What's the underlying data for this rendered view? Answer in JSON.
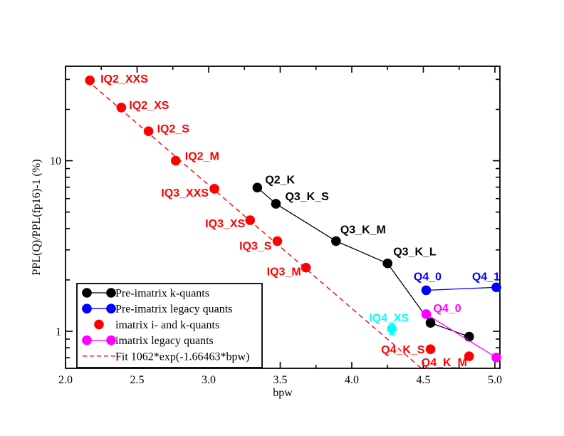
{
  "figure": {
    "background": "#ffffff",
    "title": ""
  },
  "chart_data": {
    "type": "scatter",
    "xlabel": "bpw",
    "ylabel": "PPL(Q)/PPL(fp16)-1 (%)",
    "x_axis": {
      "scale": "linear",
      "min": 2.0,
      "max": 5.035,
      "major_ticks": [
        2.0,
        2.5,
        3.0,
        3.5,
        4.0,
        4.5,
        5.0
      ],
      "tick_labels": [
        "2.0",
        "2.5",
        "3.0",
        "3.5",
        "4.0",
        "4.5",
        "5.0"
      ],
      "minor_ticks": [
        2.25,
        2.75,
        3.25,
        3.75,
        4.25,
        4.75
      ]
    },
    "y_axis": {
      "scale": "log",
      "min": 0.6065,
      "max": 35.8,
      "major_ticks": [
        1,
        10
      ],
      "tick_labels": [
        "1",
        "10"
      ],
      "minor_ticks": [
        0.7,
        0.8,
        0.9,
        2,
        3,
        4,
        5,
        6,
        7,
        8,
        9,
        20,
        30
      ]
    },
    "series": [
      {
        "name": "Pre-imatrix k-quants",
        "color": "#000000",
        "line": true,
        "in_legend": true,
        "points": [
          {
            "bpw": 3.34,
            "value": 6.96,
            "label": "Q2_K",
            "ldx": 11,
            "ldy": -6,
            "lanchor": "start"
          },
          {
            "bpw": 3.47,
            "value": 5.59,
            "label": "Q3_K_S",
            "ldx": 13,
            "ldy": -5,
            "lanchor": "start"
          },
          {
            "bpw": 3.89,
            "value": 3.38,
            "label": "Q3_K_M",
            "ldx": 6,
            "ldy": -11,
            "lanchor": "start"
          },
          {
            "bpw": 4.25,
            "value": 2.5,
            "label": "Q3_K_L",
            "ldx": 8,
            "ldy": -11,
            "lanchor": "start"
          },
          {
            "bpw": 4.55,
            "value": 1.12
          },
          {
            "bpw": 4.82,
            "value": 0.93
          }
        ]
      },
      {
        "name": "Pre-imatrix legacy quants",
        "color": "#0000ff",
        "line": true,
        "in_legend": true,
        "points": [
          {
            "bpw": 4.52,
            "value": 1.74,
            "label": "Q4_0",
            "ldx": 2,
            "ldy": -14,
            "lanchor": "middle"
          },
          {
            "bpw": 5.01,
            "value": 1.81,
            "label": "Q4_1",
            "ldx": 5,
            "ldy": -10,
            "lanchor": "end"
          }
        ]
      },
      {
        "name": "imatrix i- and k-quants",
        "color": "#ff0000",
        "line": false,
        "in_legend": true,
        "points": [
          {
            "bpw": 2.17,
            "value": 29.6,
            "label": "IQ2_XXS",
            "ldx": 15,
            "ldy": 3,
            "lanchor": "start"
          },
          {
            "bpw": 2.39,
            "value": 20.5,
            "label": "IQ2_XS",
            "ldx": 11,
            "ldy": 2,
            "lanchor": "start"
          },
          {
            "bpw": 2.58,
            "value": 14.9,
            "label": "IQ2_S",
            "ldx": 12,
            "ldy": 2,
            "lanchor": "start"
          },
          {
            "bpw": 2.77,
            "value": 10.0,
            "label": "IQ2_M",
            "ldx": 13,
            "ldy": -1,
            "lanchor": "start"
          },
          {
            "bpw": 3.04,
            "value": 6.85,
            "label": "IQ3_XXS",
            "ldx": -8,
            "ldy": 11,
            "lanchor": "end"
          },
          {
            "bpw": 3.29,
            "value": 4.48,
            "label": "IQ3_XS",
            "ldx": -7,
            "ldy": 10,
            "lanchor": "end"
          },
          {
            "bpw": 3.48,
            "value": 3.38,
            "label": "IQ3_S",
            "ldx": -8,
            "ldy": 12,
            "lanchor": "end"
          },
          {
            "bpw": 3.68,
            "value": 2.36,
            "label": "IQ3_M",
            "ldx": -7,
            "ldy": 11,
            "lanchor": "end"
          },
          {
            "bpw": 4.55,
            "value": 0.785,
            "label": "Q4_K_S",
            "ldx": -8,
            "ldy": 6,
            "lanchor": "end"
          },
          {
            "bpw": 4.82,
            "value": 0.714,
            "label": "Q4_K_M",
            "ldx": -3,
            "ldy": 14,
            "lanchor": "end"
          }
        ]
      },
      {
        "name": "imatrix legacy quants",
        "color": "#ff00ff",
        "line": true,
        "in_legend": true,
        "points": [
          {
            "bpw": 4.52,
            "value": 1.26,
            "label": "Q4_0",
            "ldx": 10,
            "ldy": -3,
            "lanchor": "start"
          },
          {
            "bpw": 5.01,
            "value": 0.702
          }
        ]
      },
      {
        "name": "imatrix IQ4_XS",
        "color": "#00ffff",
        "line": false,
        "in_legend": false,
        "points": [
          {
            "bpw": 4.28,
            "value": 1.035,
            "label": "IQ4_XS",
            "ldx": -4,
            "ldy": -10,
            "lanchor": "middle",
            "err_factor": 1.08
          }
        ]
      }
    ],
    "fit": {
      "label": "Fit 1062*exp(-1.66463*bpw)",
      "a": 1062,
      "b": 1.66463,
      "color": "#ff0000",
      "bpw_start": 2.15
    },
    "legend": {
      "entries": [
        {
          "marker": "circle-line",
          "color": "#000000",
          "label": "Pre-imatrix k-quants"
        },
        {
          "marker": "circle-line",
          "color": "#0000ff",
          "label": "Pre-imatrix legacy quants"
        },
        {
          "marker": "circle",
          "color": "#ff0000",
          "label": "imatrix i- and k-quants"
        },
        {
          "marker": "circle-line",
          "color": "#ff00ff",
          "label": "imatrix legacy quants"
        },
        {
          "marker": "dashes",
          "color": "#ff0000",
          "label": "Fit 1062*exp(-1.66463*bpw)"
        }
      ]
    }
  }
}
